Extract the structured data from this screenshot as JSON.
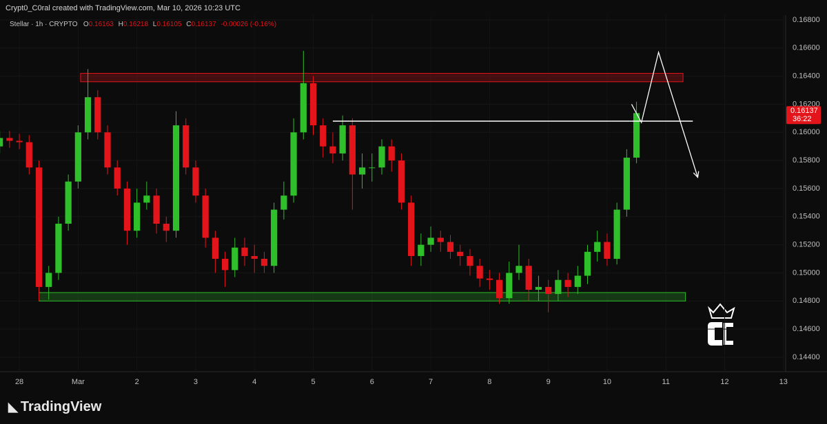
{
  "header": {
    "title": "Crypt0_C0ral created with TradingView.com, Mar 10, 2026 10:23 UTC",
    "brand": "TradingView"
  },
  "chart_data": {
    "type": "candlestick",
    "symbol": "Stellar · 1h · CRYPTO",
    "ohlc_labels": [
      "O",
      "H",
      "L",
      "C"
    ],
    "ohlc": [
      0.16163,
      0.16218,
      0.16105,
      0.16137
    ],
    "change": "-0.00026 (-0.16%)",
    "last_price": 0.16137,
    "countdown": "36:22",
    "up_color": "#2fbf2a",
    "down_color": "#e3151b",
    "grid": true,
    "xlim": [
      -7.9,
      312.9
    ],
    "xticks": [
      {
        "value": 0,
        "label": "28"
      },
      {
        "value": 24,
        "label": "Mar"
      },
      {
        "value": 48,
        "label": "2"
      },
      {
        "value": 72,
        "label": "3"
      },
      {
        "value": 96,
        "label": "4"
      },
      {
        "value": 120,
        "label": "5"
      },
      {
        "value": 144,
        "label": "6"
      },
      {
        "value": 168,
        "label": "7"
      },
      {
        "value": 192,
        "label": "8"
      },
      {
        "value": 216,
        "label": "9"
      },
      {
        "value": 240,
        "label": "10"
      },
      {
        "value": 264,
        "label": "11"
      },
      {
        "value": 288,
        "label": "12"
      },
      {
        "value": 312,
        "label": "13"
      }
    ],
    "ylim": [
      0.14297,
      0.16834
    ],
    "yticks": [
      {
        "value": 0.144,
        "label": "0.14400"
      },
      {
        "value": 0.146,
        "label": "0.14600"
      },
      {
        "value": 0.148,
        "label": "0.14800"
      },
      {
        "value": 0.15,
        "label": "0.15000"
      },
      {
        "value": 0.152,
        "label": "0.15200"
      },
      {
        "value": 0.154,
        "label": "0.15400"
      },
      {
        "value": 0.156,
        "label": "0.15600"
      },
      {
        "value": 0.158,
        "label": "0.15800"
      },
      {
        "value": 0.16,
        "label": "0.16000"
      },
      {
        "value": 0.162,
        "label": "0.16200"
      },
      {
        "value": 0.164,
        "label": "0.16400"
      },
      {
        "value": 0.166,
        "label": "0.16600"
      },
      {
        "value": 0.168,
        "label": "0.16800"
      }
    ],
    "x": [
      -8,
      -4,
      0,
      4,
      8,
      12,
      16,
      20,
      24,
      28,
      32,
      36,
      40,
      44,
      48,
      52,
      56,
      60,
      64,
      68,
      72,
      76,
      80,
      84,
      88,
      92,
      96,
      100,
      104,
      108,
      112,
      116,
      120,
      124,
      128,
      132,
      136,
      140,
      144,
      148,
      152,
      156,
      160,
      164,
      168,
      172,
      176,
      180,
      184,
      188,
      192,
      196,
      200,
      204,
      208,
      212,
      216,
      220,
      224,
      228,
      232,
      236,
      240,
      244,
      248,
      252
    ],
    "open": [
      0.159,
      0.1596,
      0.1594,
      0.1593,
      0.1575,
      0.149,
      0.15,
      0.1535,
      0.1565,
      0.16,
      0.1625,
      0.16,
      0.1575,
      0.156,
      0.153,
      0.155,
      0.1555,
      0.1535,
      0.153,
      0.1605,
      0.1575,
      0.1555,
      0.1525,
      0.151,
      0.1502,
      0.1518,
      0.1512,
      0.151,
      0.1505,
      0.1545,
      0.1555,
      0.16,
      0.1635,
      0.1605,
      0.159,
      0.1585,
      0.1605,
      0.157,
      0.1575,
      0.1575,
      0.159,
      0.158,
      0.155,
      0.1512,
      0.152,
      0.1525,
      0.1522,
      0.1515,
      0.1512,
      0.1505,
      0.1496,
      0.1495,
      0.1482,
      0.15,
      0.1505,
      0.1488,
      0.149,
      0.1485,
      0.1495,
      0.149,
      0.1498,
      0.1515,
      0.1522,
      0.151,
      0.1545,
      0.1582
    ],
    "high": [
      0.1601,
      0.1601,
      0.1599,
      0.1598,
      0.158,
      0.1505,
      0.154,
      0.157,
      0.1605,
      0.1645,
      0.163,
      0.1605,
      0.158,
      0.1565,
      0.156,
      0.1565,
      0.156,
      0.154,
      0.1615,
      0.161,
      0.158,
      0.156,
      0.153,
      0.1515,
      0.1525,
      0.1525,
      0.152,
      0.1515,
      0.155,
      0.1565,
      0.161,
      0.1658,
      0.164,
      0.161,
      0.16,
      0.1612,
      0.161,
      0.1585,
      0.1585,
      0.1595,
      0.1595,
      0.1585,
      0.1555,
      0.1528,
      0.1533,
      0.153,
      0.1527,
      0.152,
      0.1517,
      0.151,
      0.1502,
      0.15,
      0.1508,
      0.152,
      0.151,
      0.1498,
      0.1495,
      0.1502,
      0.15,
      0.1505,
      0.152,
      0.153,
      0.1528,
      0.155,
      0.1588,
      0.16218
    ],
    "low": [
      0.1585,
      0.1589,
      0.1588,
      0.157,
      0.148,
      0.1481,
      0.1495,
      0.153,
      0.156,
      0.1595,
      0.1595,
      0.157,
      0.1555,
      0.152,
      0.1525,
      0.1545,
      0.1528,
      0.1522,
      0.1525,
      0.157,
      0.155,
      0.1518,
      0.15,
      0.149,
      0.1497,
      0.1505,
      0.15,
      0.15,
      0.15,
      0.1538,
      0.155,
      0.1595,
      0.1598,
      0.1582,
      0.1578,
      0.158,
      0.1545,
      0.156,
      0.1565,
      0.157,
      0.1572,
      0.1545,
      0.1505,
      0.1505,
      0.1515,
      0.1515,
      0.151,
      0.1505,
      0.1498,
      0.149,
      0.1488,
      0.1478,
      0.1478,
      0.1495,
      0.148,
      0.148,
      0.1472,
      0.148,
      0.1483,
      0.1485,
      0.1492,
      0.1508,
      0.1505,
      0.1506,
      0.154,
      0.1578
    ],
    "close": [
      0.1596,
      0.1594,
      0.1593,
      0.1575,
      0.149,
      0.15,
      0.1535,
      0.1565,
      0.16,
      0.1625,
      0.16,
      0.1575,
      0.156,
      0.153,
      0.155,
      0.1555,
      0.1535,
      0.153,
      0.1605,
      0.1575,
      0.1555,
      0.1525,
      0.151,
      0.1502,
      0.1518,
      0.1512,
      0.151,
      0.1505,
      0.1545,
      0.1555,
      0.16,
      0.1635,
      0.1605,
      0.159,
      0.1585,
      0.1605,
      0.157,
      0.1575,
      0.1575,
      0.159,
      0.158,
      0.155,
      0.1512,
      0.152,
      0.1525,
      0.1522,
      0.1515,
      0.1512,
      0.1505,
      0.1496,
      0.1495,
      0.1482,
      0.15,
      0.1505,
      0.1488,
      0.149,
      0.1485,
      0.1495,
      0.149,
      0.1498,
      0.1515,
      0.1522,
      0.151,
      0.1545,
      0.1582,
      0.16137
    ],
    "resistance_zone": {
      "x": [
        25,
        271
      ],
      "y": [
        0.1636,
        0.1642
      ],
      "color": "#e3151b"
    },
    "support_zone": {
      "x": [
        8,
        272
      ],
      "y": [
        0.148,
        0.1486
      ],
      "color": "#2fbf2a"
    },
    "level": {
      "x": [
        128,
        275
      ],
      "y": 0.1608
    },
    "projection": {
      "x": [
        250,
        254,
        261,
        277
      ],
      "y": [
        0.162,
        0.1607,
        0.1657,
        0.1568
      ]
    }
  }
}
